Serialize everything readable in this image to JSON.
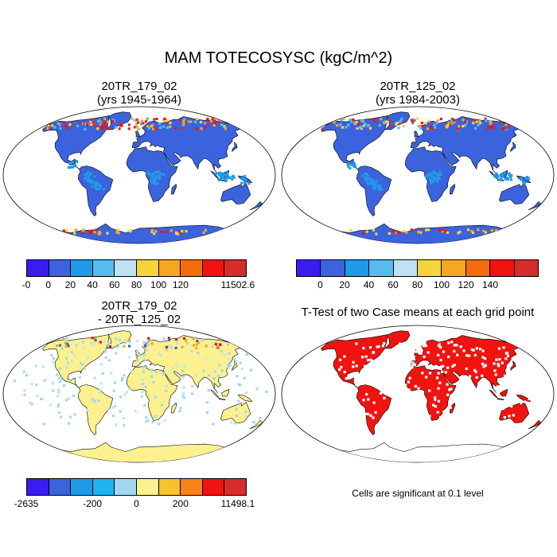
{
  "figure": {
    "title": "MAM TOTECOSYSC (kgC/m^2)",
    "note": "Cells are significant at 0.1 level"
  },
  "panels": [
    {
      "id": "case1",
      "title_line1": "20TR_179_02",
      "title_line2": "(yrs 1945-1964)",
      "style": "blue"
    },
    {
      "id": "case2",
      "title_line1": "20TR_125_02",
      "title_line2": "(yrs 1984-2003)",
      "style": "blue"
    },
    {
      "id": "diff",
      "title_line1": "20TR_179_02",
      "title_line2": "- 20TR_125_02",
      "style": "yellow"
    },
    {
      "id": "ttest",
      "title_line1": "T-Test of two Case means at each grid point",
      "title_line2": "",
      "style": "red"
    }
  ],
  "colorbars": [
    {
      "id": "cb1",
      "colors": [
        "#3a1cf0",
        "#3b63dd",
        "#1f9ae8",
        "#56bbed",
        "#bde3f2",
        "#f8d33c",
        "#f5a623",
        "#f36c0c",
        "#f0130f",
        "#d42d2a"
      ],
      "labels": [
        "-0",
        "0",
        "20",
        "40",
        "60",
        "80",
        "100",
        "120",
        "11502.6"
      ]
    },
    {
      "id": "cb2",
      "colors": [
        "#3a1cf0",
        "#3b63dd",
        "#1f9ae8",
        "#56bbed",
        "#bde3f2",
        "#f8d33c",
        "#f5a623",
        "#f36c0c",
        "#f0130f",
        "#d42d2a"
      ],
      "labels": [
        "0",
        "20",
        "40",
        "60",
        "80",
        "100",
        "120",
        "140"
      ]
    },
    {
      "id": "cb3",
      "colors": [
        "#3a1cf0",
        "#3b63dd",
        "#1f9ae8",
        "#1fb4ef",
        "#a3d7f0",
        "#fdf18f",
        "#f8c12d",
        "#f5831a",
        "#f0130f",
        "#d42d2a"
      ],
      "labels": [
        "-2635",
        "-200",
        "0",
        "200",
        "11498.1"
      ]
    }
  ],
  "colors": {
    "ocean": "#ffffff",
    "land_blue": "#3b63dd",
    "land_lightblue": "#1f9ae8",
    "land_yellow": "#fdf18f",
    "land_red": "#f0130f",
    "outline": "#000000"
  }
}
